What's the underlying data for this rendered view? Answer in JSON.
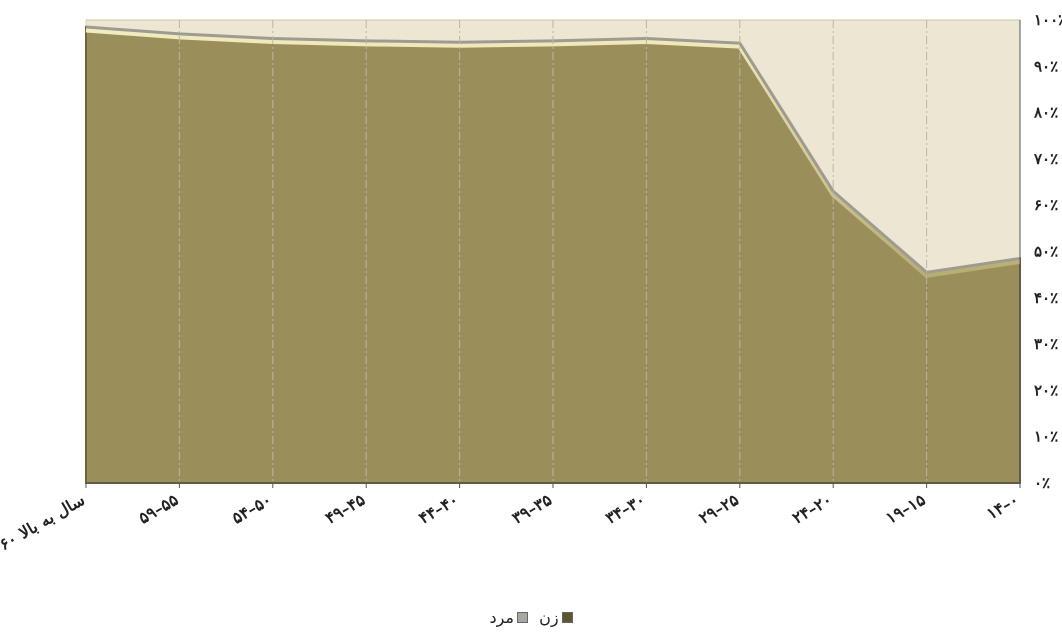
{
  "chart_data": {
    "type": "area",
    "stacked_percent": true,
    "categories": [
      "۶۰ سال به بالا",
      "۵۹–۵۵",
      "۵۴–۵۰",
      "۴۹–۴۵",
      "۴۴–۴۰",
      "۳۹–۳۵",
      "۳۴–۳۰",
      "۲۹–۲۵",
      "۲۴–۲۰",
      "۱۹–۱۵",
      "۱۴–۰"
    ],
    "series": [
      {
        "name": "زن",
        "values": [
          98.5,
          97.0,
          96.0,
          95.5,
          95.2,
          95.5,
          96.0,
          95.0,
          63.0,
          45.5,
          48.5
        ],
        "color": "#9a8f5a"
      },
      {
        "name": "مرد",
        "values": [
          1.5,
          3.0,
          4.0,
          4.5,
          4.8,
          4.5,
          4.0,
          5.0,
          37.0,
          54.5,
          51.5
        ],
        "color": "#ece6d2"
      }
    ],
    "y_ticks": [
      "۰٪",
      "۱۰٪",
      "۲۰٪",
      "۳۰٪",
      "۴۰٪",
      "۵۰٪",
      "۶۰٪",
      "۷۰٪",
      "۸۰٪",
      "۹۰٪",
      "۱۰۰٪"
    ],
    "ylim": [
      0,
      100
    ],
    "y_axis_side": "right",
    "grid": "vertical dash-dot",
    "legend_position": "bottom"
  },
  "legend": {
    "female_label": "زن",
    "male_label": "مرد",
    "female_color": "#5e5430",
    "male_color": "#a8a8a0"
  }
}
